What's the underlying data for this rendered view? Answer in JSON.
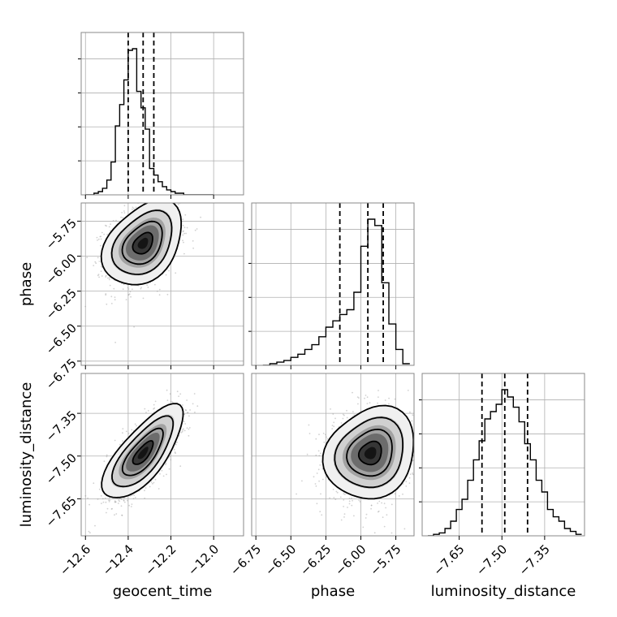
{
  "chart_data": {
    "type": "corner",
    "parameters": [
      "geocent_time",
      "phase",
      "luminosity_distance"
    ],
    "axis_labels": [
      "geocent_time",
      "phase",
      "luminosity_distance"
    ],
    "ranges": [
      [
        -12.62,
        -11.86
      ],
      [
        -6.78,
        -5.62
      ],
      [
        -7.78,
        -7.21
      ]
    ],
    "ticks": {
      "geocent_time": {
        "values": [
          -12.6,
          -12.4,
          -12.2,
          -12.0
        ],
        "labels": [
          "−12.6",
          "−12.4",
          "−12.2",
          "−12.0"
        ]
      },
      "phase": {
        "values": [
          -6.75,
          -6.5,
          -6.25,
          -6.0,
          -5.75
        ],
        "labels": [
          "−6.75",
          "−6.50",
          "−6.25",
          "−6.00",
          "−5.75"
        ]
      },
      "luminosity_distance": {
        "values": [
          -7.65,
          -7.5,
          -7.35
        ],
        "labels": [
          "−7.65",
          "−7.50",
          "−7.35"
        ]
      }
    },
    "quantiles": {
      "geocent_time": [
        -12.4,
        -12.33,
        -12.28
      ],
      "phase": [
        -6.15,
        -5.95,
        -5.84
      ],
      "luminosity_distance": [
        -7.57,
        -7.49,
        -7.41
      ]
    },
    "histograms": {
      "geocent_time": {
        "edges": [
          -12.6,
          -12.58,
          -12.56,
          -12.54,
          -12.52,
          -12.5,
          -12.48,
          -12.46,
          -12.44,
          -12.42,
          -12.4,
          -12.38,
          -12.36,
          -12.34,
          -12.32,
          -12.3,
          -12.28,
          -12.26,
          -12.24,
          -12.22,
          -12.2,
          -12.18,
          -12.16,
          -12.14,
          -12.12,
          -12.1,
          -12.08,
          -12.06,
          -12.04,
          -12.02,
          -12.0
        ],
        "counts": [
          0,
          0,
          1,
          2,
          4,
          9,
          20,
          42,
          55,
          70,
          88,
          89,
          63,
          53,
          40,
          16,
          12,
          8,
          5,
          3,
          2,
          1,
          1,
          0,
          0,
          0,
          0,
          0,
          0,
          0
        ]
      },
      "phase": {
        "edges": [
          -6.7,
          -6.65,
          -6.6,
          -6.55,
          -6.5,
          -6.45,
          -6.4,
          -6.35,
          -6.3,
          -6.25,
          -6.2,
          -6.15,
          -6.1,
          -6.05,
          -6.0,
          -5.95,
          -5.9,
          -5.85,
          -5.8,
          -5.75,
          -5.7,
          -5.65
        ],
        "counts": [
          0,
          1,
          2,
          3,
          5,
          7,
          10,
          13,
          18,
          24,
          28,
          32,
          35,
          46,
          75,
          92,
          88,
          52,
          26,
          10,
          1
        ]
      },
      "luminosity_distance": {
        "edges": [
          -7.76,
          -7.74,
          -7.72,
          -7.7,
          -7.68,
          -7.66,
          -7.64,
          -7.62,
          -7.6,
          -7.58,
          -7.56,
          -7.54,
          -7.52,
          -7.5,
          -7.48,
          -7.46,
          -7.44,
          -7.42,
          -7.4,
          -7.38,
          -7.36,
          -7.34,
          -7.32,
          -7.3,
          -7.28,
          -7.26,
          -7.24,
          -7.22
        ],
        "counts": [
          0,
          1,
          2,
          5,
          10,
          18,
          25,
          38,
          52,
          65,
          80,
          85,
          90,
          100,
          95,
          88,
          78,
          63,
          52,
          38,
          30,
          18,
          13,
          10,
          5,
          3,
          1
        ]
      }
    },
    "density_2d": [
      {
        "x": "geocent_time",
        "y": "phase",
        "mean": [
          -12.33,
          -5.91
        ],
        "sd": [
          0.08,
          0.13
        ],
        "corr": 0.3,
        "levels": [
          "#141414",
          "#363636",
          "#6c6c6c",
          "#a2a2a2",
          "#d0d0d0",
          "#f0f0f0"
        ]
      },
      {
        "x": "geocent_time",
        "y": "luminosity_distance",
        "mean": [
          -12.33,
          -7.49
        ],
        "sd": [
          0.08,
          0.07
        ],
        "corr": 0.7,
        "levels": [
          "#141414",
          "#363636",
          "#6c6c6c",
          "#a2a2a2",
          "#d0d0d0",
          "#f0f0f0"
        ]
      },
      {
        "x": "phase",
        "y": "luminosity_distance",
        "mean": [
          -5.93,
          -7.49
        ],
        "sd": [
          0.14,
          0.07
        ],
        "corr": 0.1,
        "levels": [
          "#141414",
          "#363636",
          "#6c6c6c",
          "#a2a2a2",
          "#d0d0d0",
          "#f0f0f0"
        ]
      }
    ],
    "contour_sigmas": [
      0.5,
      1.0,
      1.5,
      2.0
    ],
    "grid": true,
    "colors": {
      "line": "#000000",
      "grid": "#b0b0b0",
      "scatter": "#999999",
      "frame": "#888888"
    }
  }
}
